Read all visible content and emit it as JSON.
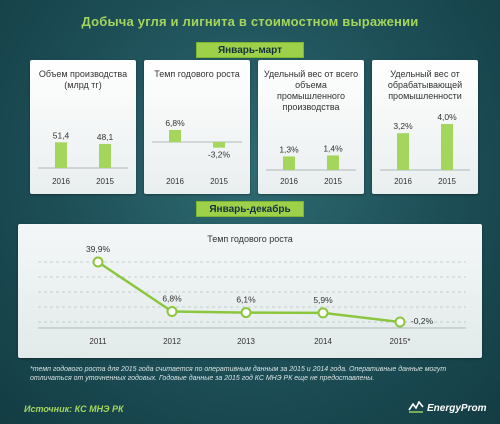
{
  "title": "Добыча угля и лигнита в стоимостном выражении",
  "period_1": "Январь-март",
  "period_2": "Январь-декабрь",
  "colors": {
    "bar": "#a4d65e",
    "line": "#8cc63f",
    "background": "#1d4e56",
    "accent_text": "#a4d65e"
  },
  "chart_data": [
    {
      "type": "bar",
      "title": "Объем производства (млрд тг)",
      "categories": [
        "2016",
        "2015"
      ],
      "values": [
        51.4,
        48.1
      ],
      "labels": [
        "51,4",
        "48,1"
      ]
    },
    {
      "type": "bar",
      "title": "Темп годового роста",
      "categories": [
        "2016",
        "2015"
      ],
      "values": [
        6.8,
        -3.2
      ],
      "labels": [
        "6,8%",
        "-3,2%"
      ]
    },
    {
      "type": "bar",
      "title": "Удельный вес от всего объема промышленного производства",
      "categories": [
        "2016",
        "2015"
      ],
      "values": [
        1.3,
        1.4
      ],
      "labels": [
        "1,3%",
        "1,4%"
      ]
    },
    {
      "type": "bar",
      "title": "Удельный вес от обрабатывающей промышленности",
      "categories": [
        "2016",
        "2015"
      ],
      "values": [
        3.2,
        4.0
      ],
      "labels": [
        "3,2%",
        "4,0%"
      ]
    },
    {
      "type": "line",
      "title": "Темп годового роста",
      "x": [
        "2011",
        "2012",
        "2013",
        "2014",
        "2015*"
      ],
      "values": [
        39.9,
        6.8,
        6.1,
        5.9,
        -0.2
      ],
      "labels": [
        "39,9%",
        "6,8%",
        "6,1%",
        "5,9%",
        "-0,2%"
      ],
      "grid": true
    }
  ],
  "footnote": "*темп годового роста для 2015 года считается по оперативным данным за 2015 и 2014 года. Оперативные данные могут отличаться от уточненных годовых. Годовые данные за 2015 год КС МНЭ РК еще не предоставлены.",
  "source": "Источник: КС МНЭ РК",
  "logo": "EnergyProm"
}
